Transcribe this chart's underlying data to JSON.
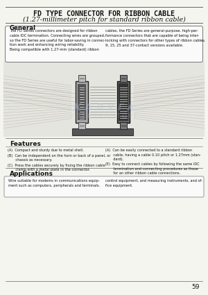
{
  "title_line1": "FD TYPE CONNECTOR FOR RIBBON CABLE",
  "title_line2": "(1.27-millimeter pitch for standard ribbon cable)",
  "section_general": "General",
  "general_text_left": "The FD Series connectors are designed for ribbon\ncable IDC termination. Connecting wires are grouped,\nso the FD Series are useful for labor-saving in connec-\ntion work and enhancing wiring reliability.\nBeing compatible with 1.27-mm (standard) ribbon",
  "general_text_right": "cables, the FD Series are general-purpose, high-per-\nformance connectors that are capable of being inter-\nlocking with connectors for other types of ribbon cables.\n9, 15, 25 and 37-contact versions available.",
  "section_features": "Features",
  "features_left": [
    "(A)  Compact and sturdy due to metal shell.",
    "(B)  Can be independent on the horn or back of a panel, or\n       chassis as necessary.",
    "(C)  Press the cables securely by fixing the ribbon cable\n       clamp with a metal plate in the connector."
  ],
  "features_right": [
    "(A)  Can be easily connected to a standard ribbon\n       cable, having a cable 0.10 pitch or 1.27mm (stan-\n       dard).",
    "(E)  Easy to connect cables by following the same IDC\n       termination and connecting procedures as those\n       for an other ribbon cable connections."
  ],
  "section_applications": "Applications",
  "applications_text_left": "Wire suitable for modems in communications equip-\nment such as computers, peripherals and terminals,",
  "applications_text_right": "control equipment, and measuring instruments, and of-\nfice equipment.",
  "page_number": "59",
  "bg_color": "#f5f5f0",
  "text_color": "#111111",
  "title_color": "#111111"
}
